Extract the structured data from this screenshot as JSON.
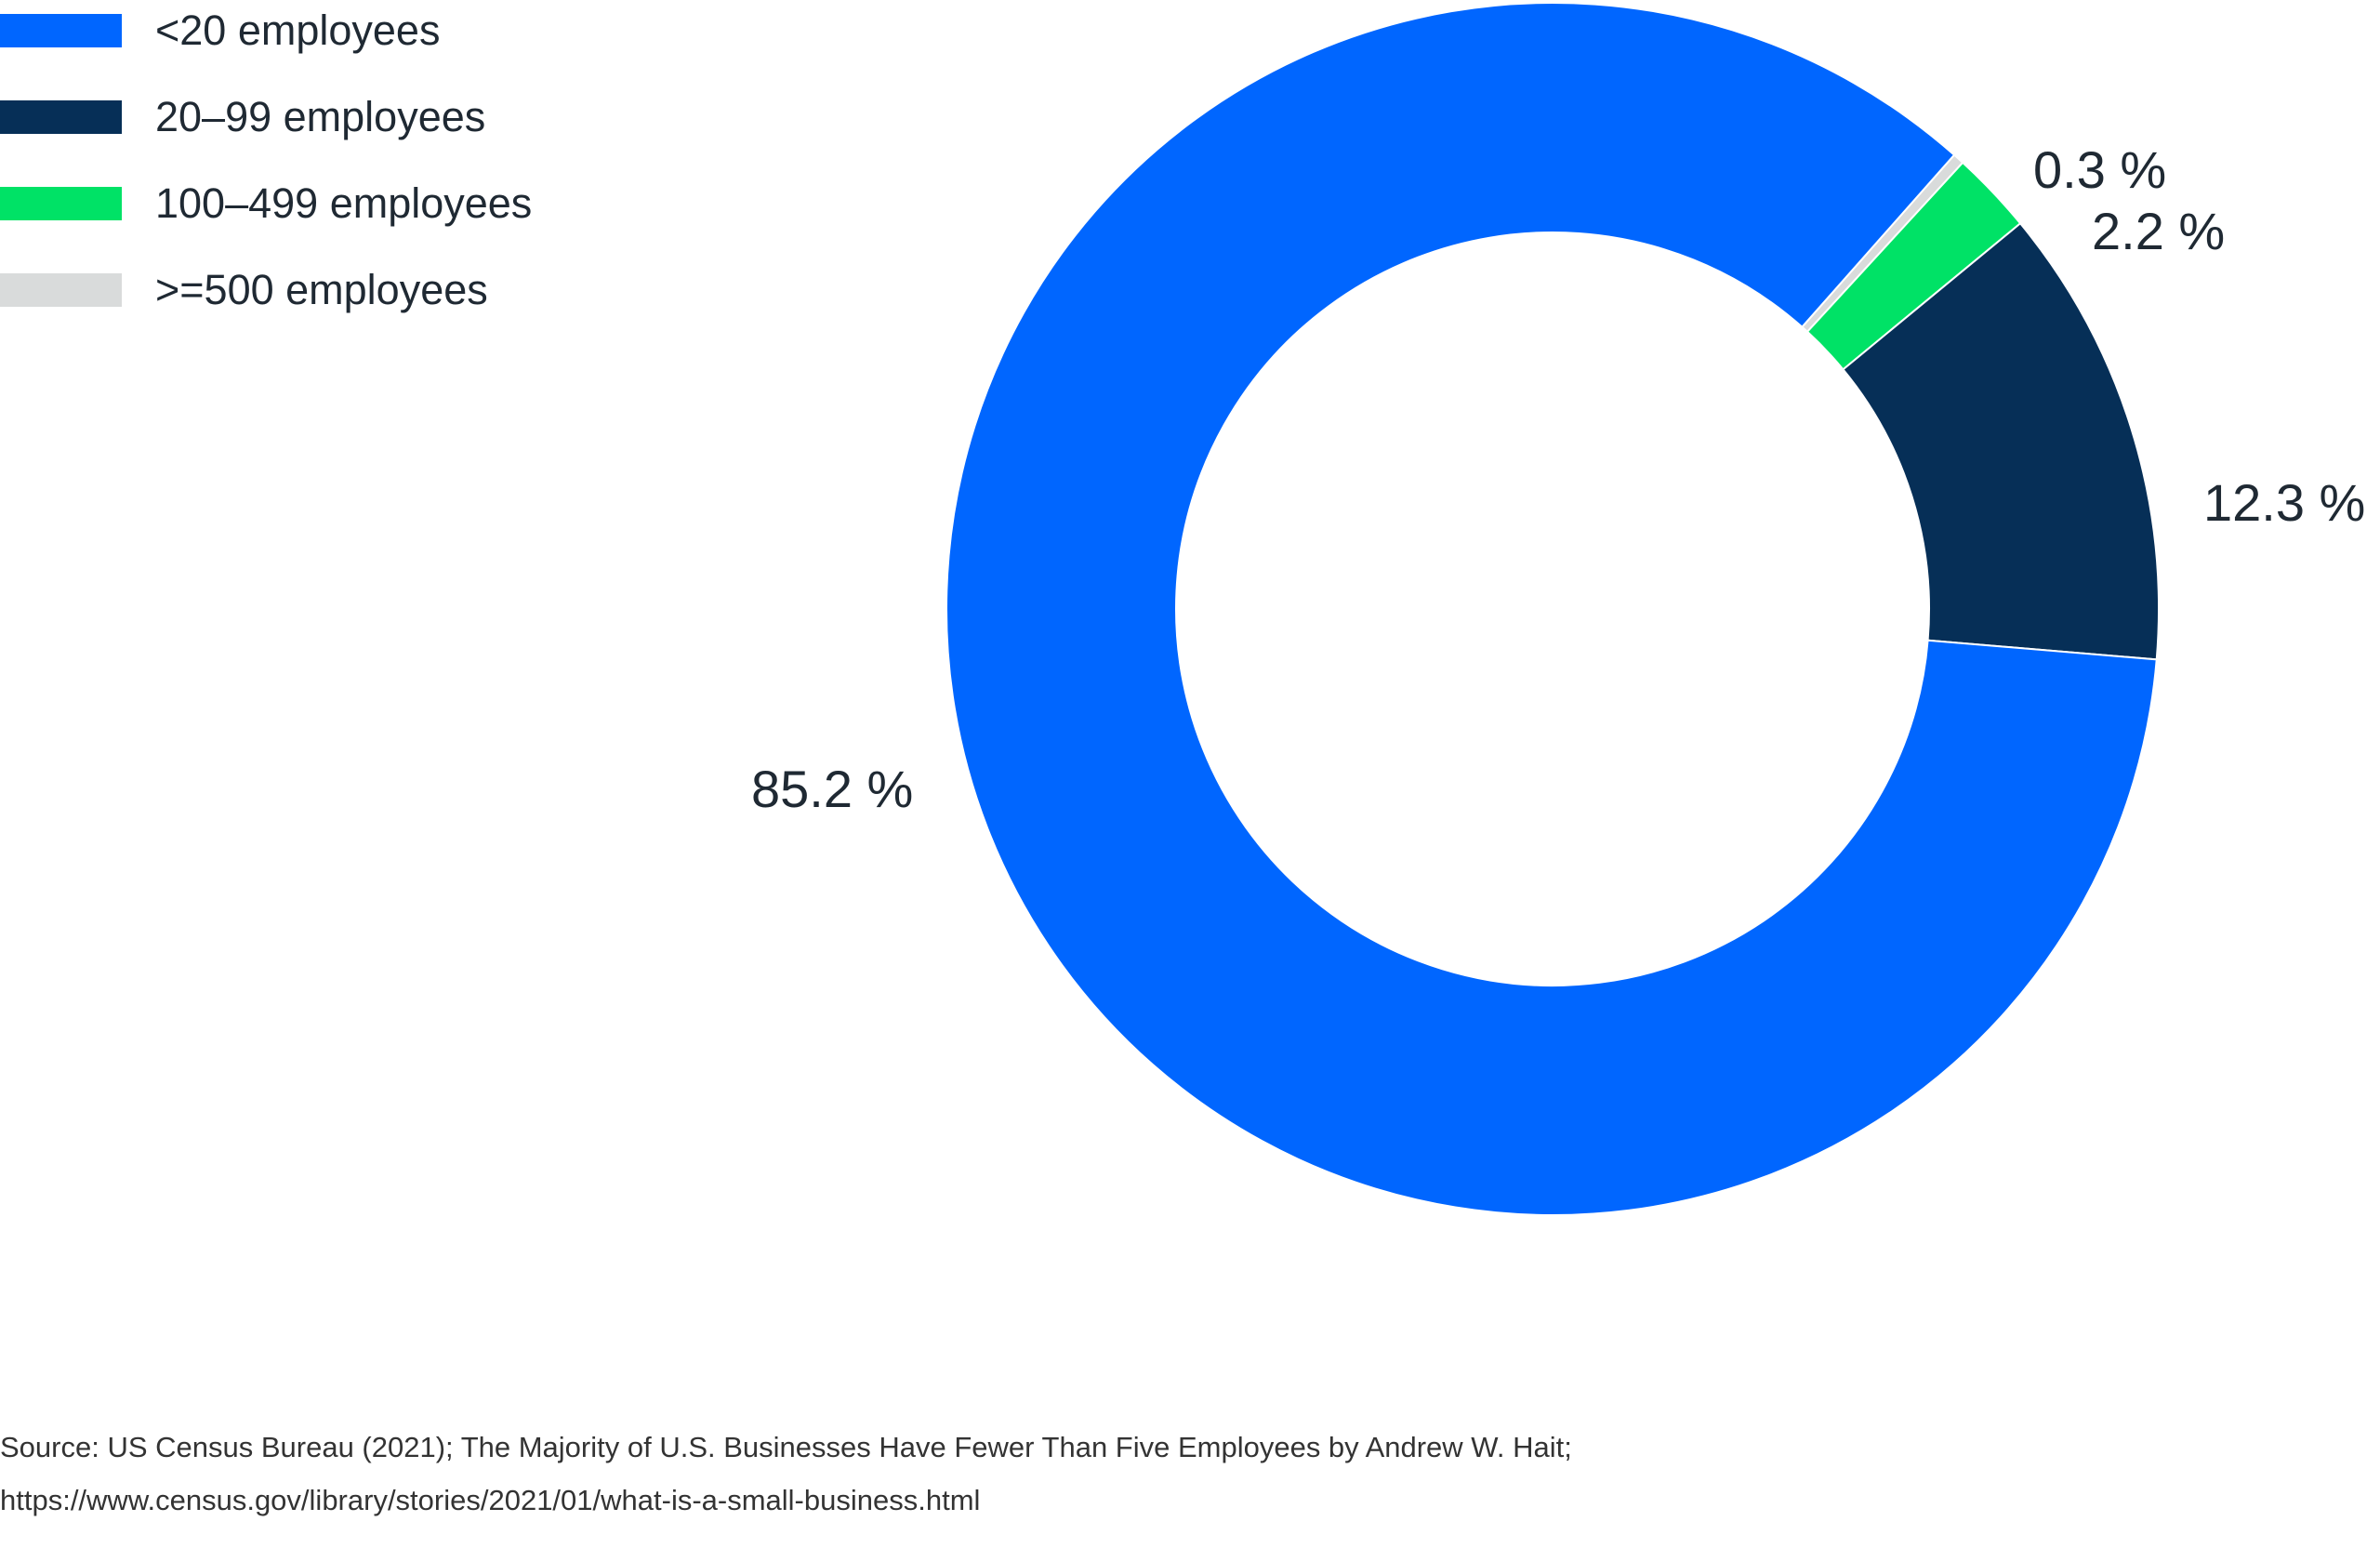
{
  "chart_data": {
    "type": "pie",
    "variant": "donut",
    "categories": [
      "<20 employees",
      "20–99 employees",
      "100–499 employees",
      ">=500 employees"
    ],
    "values": [
      85.2,
      12.3,
      2.2,
      0.3
    ],
    "value_labels": [
      "85.2 %",
      "12.3 %",
      "2.2 %",
      "0.3 %"
    ],
    "colors": [
      "#0066ff",
      "#062f57",
      "#00e266",
      "#d9dbdb"
    ],
    "legend_position": "top-left",
    "title": ""
  },
  "source": {
    "line1": "Source: US Census Bureau (2021); The Majority of U.S. Businesses Have Fewer Than Five Employees by Andrew W. Hait;",
    "line2": "https://www.census.gov/library/stories/2021/01/what-is-a-small-business.html"
  }
}
